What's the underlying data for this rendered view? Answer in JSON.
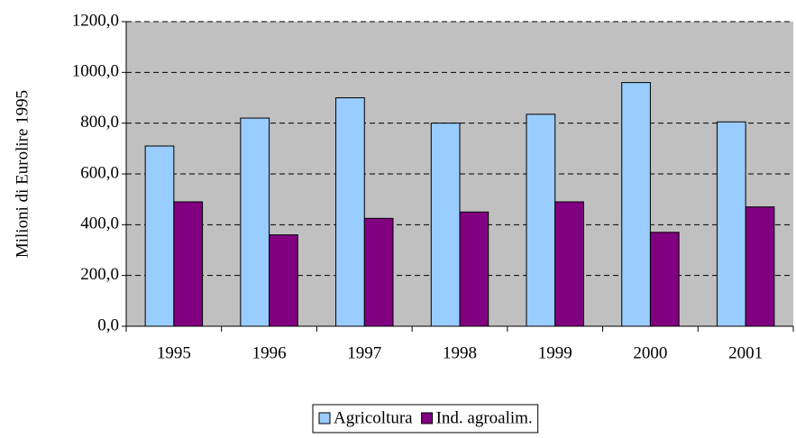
{
  "chart_data": {
    "type": "bar",
    "y_label": "Milioni di Eurolire 1995",
    "categories": [
      "1995",
      "1996",
      "1997",
      "1998",
      "1999",
      "2000",
      "2001"
    ],
    "series": [
      {
        "name": "Agricoltura",
        "color": "#99ccff",
        "values": [
          710,
          820,
          900,
          800,
          835,
          960,
          805
        ]
      },
      {
        "name": "Ind. agroalim.",
        "color": "#800080",
        "values": [
          490,
          360,
          425,
          450,
          490,
          370,
          470
        ]
      }
    ],
    "ylim": [
      0,
      1200
    ],
    "yticks": [
      {
        "value": 0,
        "label": "0,0"
      },
      {
        "value": 200,
        "label": "200,0"
      },
      {
        "value": 400,
        "label": "400,0"
      },
      {
        "value": 600,
        "label": "600,0"
      },
      {
        "value": 800,
        "label": "800,0"
      },
      {
        "value": 1000,
        "label": "1000,0"
      },
      {
        "value": 1200,
        "label": "1200,0"
      }
    ],
    "grid": true,
    "legend": "bottom"
  }
}
